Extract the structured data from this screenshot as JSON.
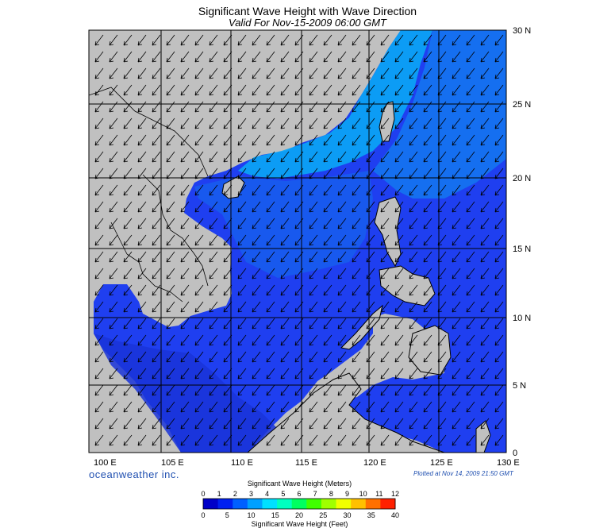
{
  "header": {
    "title": "Significant Wave Height with Wave Direction",
    "subtitle": "Valid For Nov-15-2009 06:00 GMT"
  },
  "map": {
    "lat_labels": [
      "30 N",
      "25 N",
      "20 N",
      "15 N",
      "10 N",
      "5 N",
      "0"
    ],
    "lon_labels": [
      "100 E",
      "105 E",
      "110 E",
      "115 E",
      "120 E",
      "125 E",
      "130 E"
    ],
    "land_color": "#c0c0c0",
    "sea_color": "#1f3fe0",
    "wave_arrow_direction": "from northeast toward southwest"
  },
  "footer": {
    "brand": "oceanweather inc.",
    "plotted": "Plotted at Nov 14, 2009 21:50 GMT"
  },
  "colorbar": {
    "title_meters": "Significant Wave Height (Meters)",
    "title_feet": "Significant Wave Height (Feet)",
    "meters_ticks": [
      "0",
      "1",
      "2",
      "3",
      "4",
      "5",
      "6",
      "7",
      "8",
      "9",
      "10",
      "11",
      "12"
    ],
    "feet_ticks": [
      "0",
      "5",
      "10",
      "15",
      "20",
      "25",
      "30",
      "35",
      "40"
    ],
    "colors": [
      "#0000c8",
      "#0020f0",
      "#0060ff",
      "#00a0ff",
      "#00e0ff",
      "#00ffc0",
      "#00ff60",
      "#40ff00",
      "#a0ff00",
      "#f0ff00",
      "#ffc000",
      "#ff7000",
      "#ff2000"
    ]
  }
}
